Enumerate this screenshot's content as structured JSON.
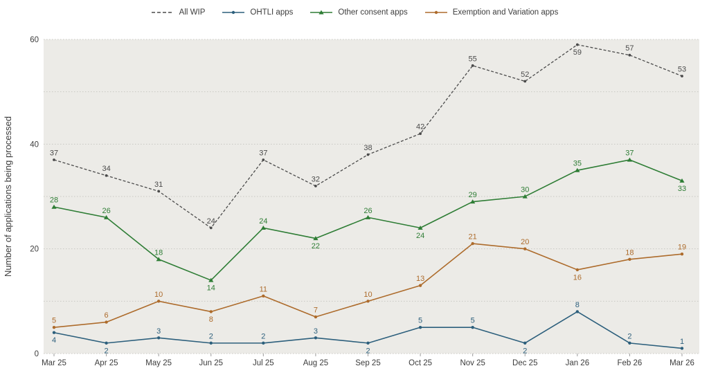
{
  "chart_data": {
    "type": "line",
    "title": "",
    "xlabel": "",
    "ylabel": "Number of applications being processed",
    "ylim": [
      0,
      60
    ],
    "y_tick_labels": [
      0,
      20,
      40,
      60
    ],
    "gridlines_every": 10,
    "grid": true,
    "legend_position": "top-center",
    "categories": [
      "Mar 25",
      "Apr 25",
      "May 25",
      "Jun 25",
      "Jul 25",
      "Aug 25",
      "Sep 25",
      "Oct 25",
      "Nov 25",
      "Dec 25",
      "Jan 26",
      "Feb 26",
      "Mar 26"
    ],
    "series": [
      {
        "name": "All WIP",
        "color": "#4a4a4a",
        "line_style": "dashed",
        "marker": "dot",
        "values": [
          37,
          34,
          31,
          24,
          37,
          32,
          38,
          42,
          55,
          52,
          59,
          57,
          53
        ],
        "label_pos": [
          "above",
          "above",
          "above",
          "above",
          "above",
          "above",
          "above",
          "above",
          "above",
          "above",
          "below",
          "above",
          "above"
        ]
      },
      {
        "name": "OHTLI apps",
        "color": "#2c5f7c",
        "line_style": "solid",
        "marker": "dot",
        "values": [
          4,
          2,
          3,
          2,
          2,
          3,
          2,
          5,
          5,
          2,
          8,
          2,
          1
        ],
        "label_pos": [
          "below",
          "below",
          "above",
          "above",
          "above",
          "above",
          "below",
          "above",
          "above",
          "below",
          "above",
          "above",
          "above"
        ]
      },
      {
        "name": "Other consent apps",
        "color": "#2e7d35",
        "line_style": "solid",
        "marker": "triangle",
        "values": [
          28,
          26,
          18,
          14,
          24,
          22,
          26,
          24,
          29,
          30,
          35,
          37,
          33
        ],
        "label_pos": [
          "above",
          "above",
          "above",
          "below",
          "above",
          "below",
          "above",
          "below",
          "above",
          "above",
          "above",
          "above",
          "below"
        ]
      },
      {
        "name": "Exemption and Variation apps",
        "color": "#ad6b2b",
        "line_style": "solid",
        "marker": "dot",
        "values": [
          5,
          6,
          10,
          8,
          11,
          7,
          10,
          13,
          21,
          20,
          16,
          18,
          19
        ],
        "label_pos": [
          "above",
          "above",
          "above",
          "below",
          "above",
          "above",
          "above",
          "above",
          "above",
          "above",
          "below",
          "above",
          "above"
        ]
      }
    ]
  },
  "style": {
    "plot_background": "#ecebe7",
    "gridline_color": "#c8c7c2",
    "axis_text_color": "#3c3c3c",
    "tick_color": "#9b9b9b"
  }
}
